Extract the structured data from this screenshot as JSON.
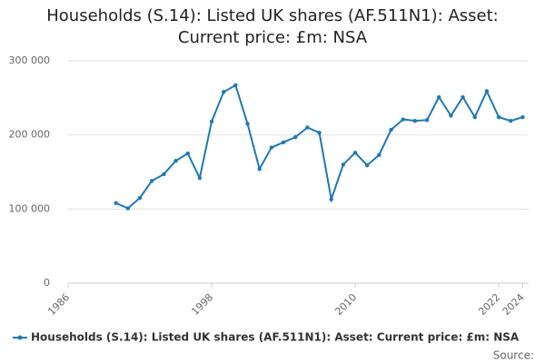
{
  "chart_data": {
    "type": "line",
    "title": "Households (S.14): Listed UK shares (AF.511N1): Asset: Current price: £m: NSA",
    "x": [
      1990,
      1991,
      1992,
      1993,
      1994,
      1995,
      1996,
      1997,
      1998,
      1999,
      2000,
      2001,
      2002,
      2003,
      2004,
      2005,
      2006,
      2007,
      2008,
      2009,
      2010,
      2011,
      2012,
      2013,
      2014,
      2015,
      2016,
      2017,
      2018,
      2019,
      2020,
      2021,
      2022,
      2023,
      2024
    ],
    "series": [
      {
        "name": "Households (S.14): Listed UK shares (AF.511N1): Asset: Current price: £m: NSA",
        "color": "#1f78b4",
        "values": [
          108000,
          101000,
          115000,
          138000,
          147000,
          165000,
          175000,
          142000,
          218000,
          258000,
          267000,
          215000,
          154000,
          183000,
          190000,
          197000,
          210000,
          203000,
          113000,
          160000,
          176000,
          159000,
          173000,
          207000,
          221000,
          219000,
          220000,
          251000,
          226000,
          251000,
          224000,
          259000,
          224000,
          219000,
          224000
        ]
      }
    ],
    "xlim": [
      1986,
      2024.5
    ],
    "xticks": [
      1986,
      1998,
      2010,
      2022,
      2024
    ],
    "ylim": [
      0,
      300000
    ],
    "yticks": [
      0,
      {
        "value": 100000,
        "label": "100 000"
      },
      {
        "value": 200000,
        "label": "200 000"
      },
      {
        "value": 300000,
        "label": "300 000"
      }
    ],
    "grid": true,
    "legend": "bottom",
    "source": "Source:"
  }
}
